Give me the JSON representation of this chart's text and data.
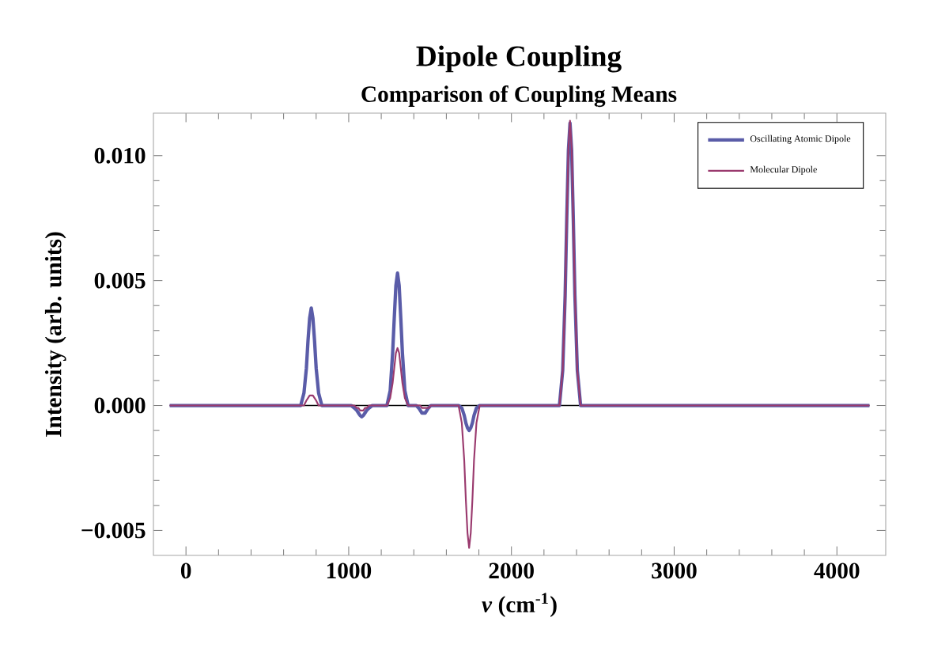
{
  "chart_data": {
    "type": "line",
    "title": "Dipole Coupling",
    "subtitle": "Comparison of Coupling Means",
    "xlabel": "*ν* (cm$^{-1}$)",
    "ylabel": "Intensity (arb. units)",
    "x": [
      -100,
      705,
      725,
      740,
      750,
      760,
      770,
      780,
      790,
      800,
      815,
      835,
      1015,
      1035,
      1050,
      1060,
      1070,
      1080,
      1090,
      1100,
      1110,
      1125,
      1145,
      1235,
      1255,
      1270,
      1280,
      1290,
      1300,
      1310,
      1320,
      1330,
      1345,
      1365,
      1395,
      1415,
      1430,
      1440,
      1450,
      1460,
      1470,
      1480,
      1490,
      1505,
      1525,
      1675,
      1695,
      1710,
      1720,
      1730,
      1740,
      1750,
      1760,
      1770,
      1785,
      1805,
      2295,
      2315,
      2330,
      2340,
      2350,
      2360,
      2370,
      2380,
      2390,
      2405,
      2425,
      4200
    ],
    "series": [
      {
        "name": "Oscillating Atomic Dipole",
        "color": "#5a5ca8",
        "values": [
          0,
          0,
          0.0005,
          0.0015,
          0.0026,
          0.0035,
          0.0039,
          0.0035,
          0.0026,
          0.0015,
          0.0005,
          0,
          0,
          -0.0001,
          -0.0002,
          -0.0003,
          -0.0004,
          -0.00045,
          -0.0004,
          -0.0003,
          -0.0002,
          -0.0001,
          0,
          0,
          0.0006,
          0.0021,
          0.0035,
          0.0048,
          0.0053,
          0.0048,
          0.0035,
          0.0021,
          0.0006,
          0,
          0,
          0,
          -0.0001,
          -0.0002,
          -0.0003,
          -0.0003,
          -0.0003,
          -0.0002,
          -0.0001,
          0,
          0,
          0,
          -0.0001,
          -0.0004,
          -0.0007,
          -0.0009,
          -0.001,
          -0.0009,
          -0.0007,
          -0.0004,
          -0.0001,
          0,
          0,
          0.0014,
          0.0044,
          0.0075,
          0.0102,
          0.0113,
          0.0102,
          0.0075,
          0.0044,
          0.0014,
          0,
          0
        ]
      },
      {
        "name": "Molecular Dipole",
        "color": "#9a3a6e",
        "values": [
          0,
          0,
          0,
          0.0002,
          0.0003,
          0.0004,
          0.0004,
          0.0004,
          0.0003,
          0.0002,
          0,
          0,
          0,
          0,
          -0.0001,
          -0.0001,
          -0.0002,
          -0.0002,
          -0.0002,
          -0.0001,
          -0.0001,
          0,
          0,
          0,
          0.0003,
          0.0009,
          0.0015,
          0.0021,
          0.0023,
          0.0021,
          0.0015,
          0.0009,
          0.0003,
          0,
          0,
          0,
          0,
          0,
          -0.0001,
          -0.0001,
          -0.0001,
          -0.0001,
          -0.0001,
          0,
          0,
          0,
          -0.0007,
          -0.0022,
          -0.0038,
          -0.0051,
          -0.0057,
          -0.0051,
          -0.0038,
          -0.0022,
          -0.0007,
          0,
          0,
          0.0014,
          0.0044,
          0.0075,
          0.0103,
          0.0114,
          0.0103,
          0.0075,
          0.0044,
          0.0014,
          0,
          0
        ]
      }
    ],
    "xlim": [
      -200,
      4300
    ],
    "ylim": [
      -0.006,
      0.0117
    ],
    "xticks": [
      0,
      1000,
      2000,
      3000,
      4000
    ],
    "yticks": [
      {
        "value": -0.005,
        "label": "−0.005"
      },
      {
        "value": 0,
        "label": "0.000"
      },
      {
        "value": 0.005,
        "label": "0.005"
      },
      {
        "value": 0.01,
        "label": "0.010"
      }
    ],
    "ref_lines": [
      {
        "axis": "y",
        "value": 0,
        "color": "#000000"
      }
    ],
    "legend": "top right",
    "grid": false,
    "marker": "none",
    "line_style": "solid"
  }
}
